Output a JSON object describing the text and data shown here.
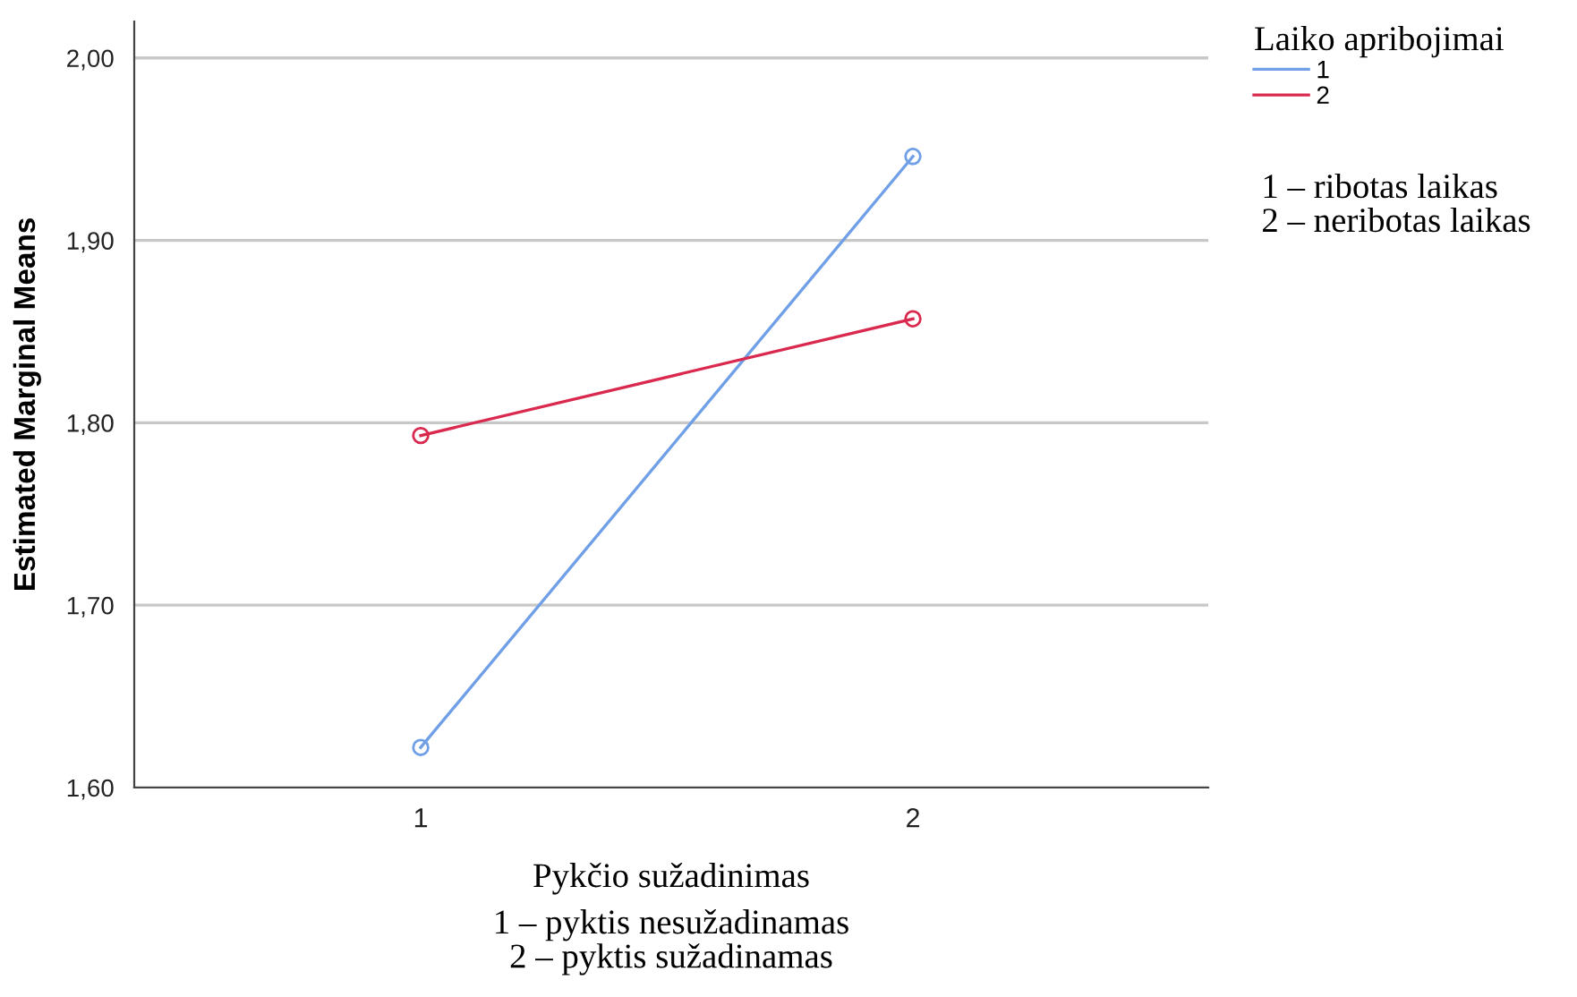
{
  "chart_data": {
    "type": "line",
    "xlabel": "Pykčio sužadinimas",
    "ylabel": "Estimated Marginal Means",
    "legend_title": "Laiko apribojimai",
    "categories": [
      "1",
      "2"
    ],
    "series": [
      {
        "name": "1",
        "color": "#6f9fe6",
        "values": [
          1.622,
          1.946
        ]
      },
      {
        "name": "2",
        "color": "#d9294f",
        "values": [
          1.793,
          1.857
        ]
      }
    ],
    "ylim": [
      1.6,
      2.02
    ],
    "yticks": [
      {
        "value": 1.6,
        "label": "1,60"
      },
      {
        "value": 1.7,
        "label": "1,70"
      },
      {
        "value": 1.8,
        "label": "1,80"
      },
      {
        "value": 1.9,
        "label": "1,90"
      },
      {
        "value": 2.0,
        "label": "2,00"
      }
    ],
    "grid": "y",
    "legend": "top right",
    "marker": "circle",
    "annotations": [
      "1 – ribotas laikas\n2 – neribotas laikas",
      "1 – pyktis nesužadinamas\n2 – pyktis sužadinamas"
    ]
  }
}
